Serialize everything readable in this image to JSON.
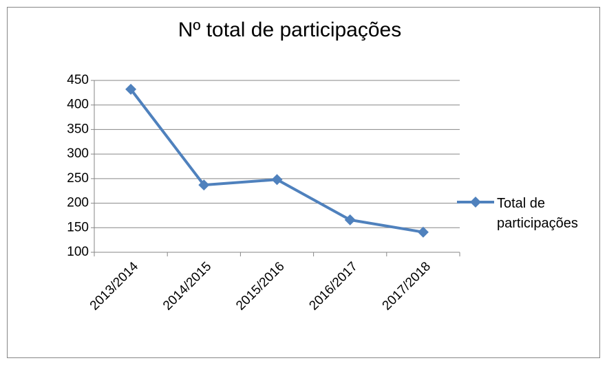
{
  "chart_data": {
    "type": "line",
    "title": "Nº total de participações",
    "categories": [
      "2013/2014",
      "2014/2015",
      "2015/2016",
      "2016/2017",
      "2017/2018"
    ],
    "series": [
      {
        "name": "Total de participações",
        "color": "#4f81bd",
        "values": [
          432,
          237,
          248,
          166,
          141
        ]
      }
    ],
    "ylim": [
      100,
      450
    ],
    "yticks": [
      100,
      150,
      200,
      250,
      300,
      350,
      400,
      450
    ],
    "grid": true,
    "legend": "right"
  }
}
